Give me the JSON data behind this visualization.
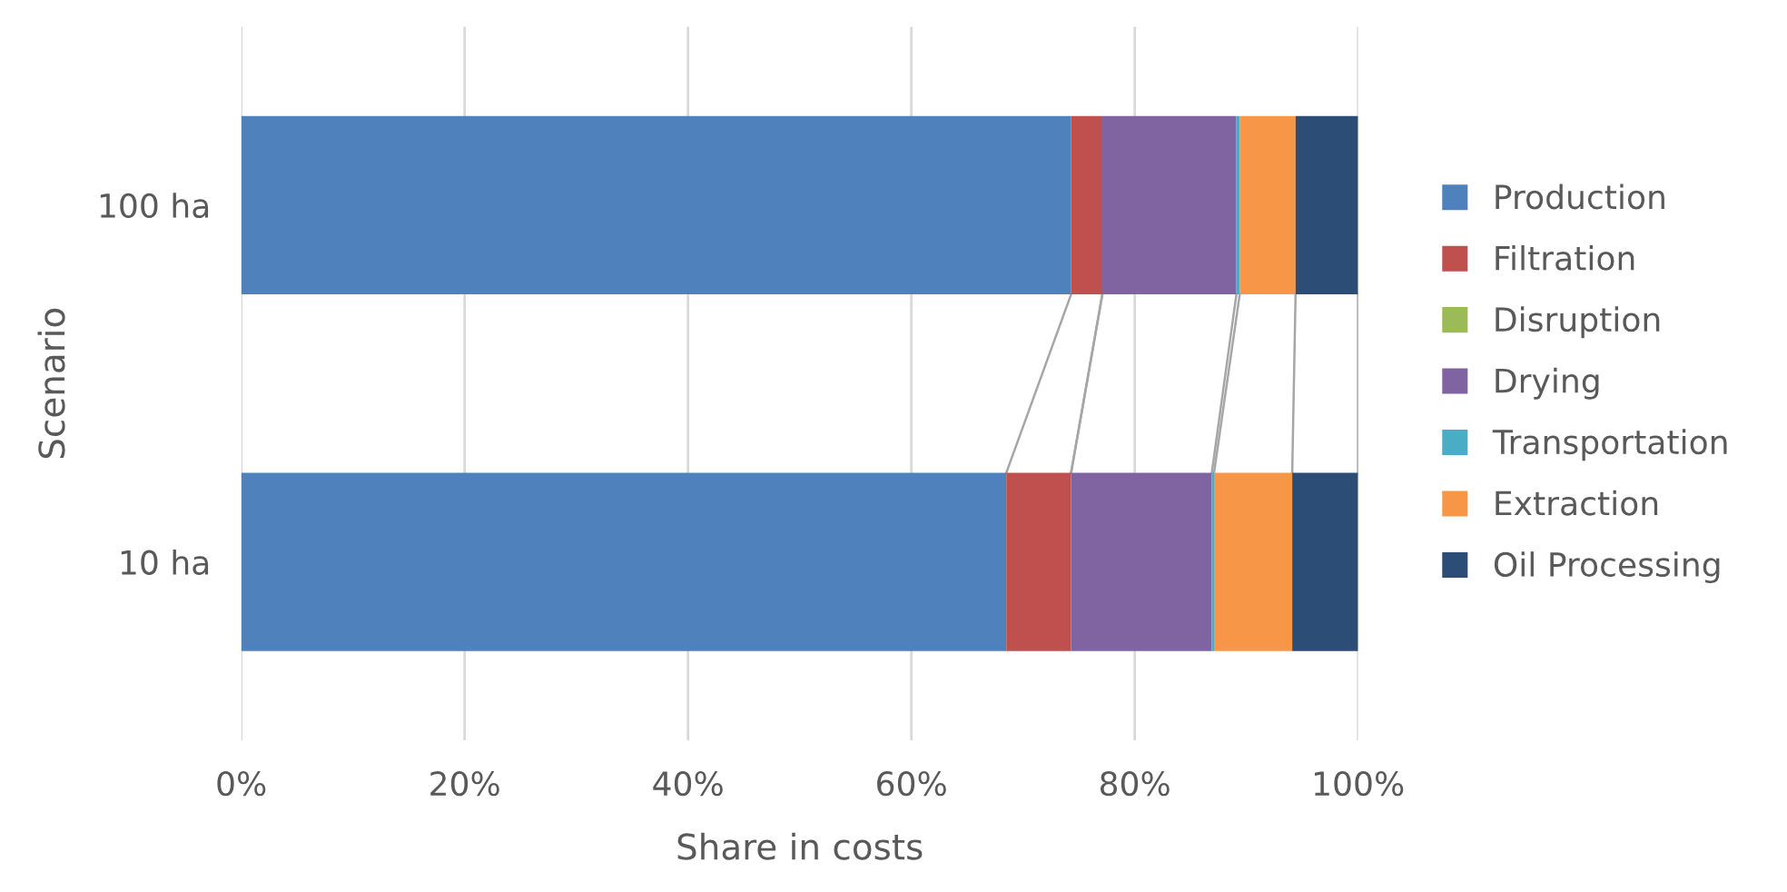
{
  "chart_data": {
    "type": "bar",
    "orientation": "horizontal",
    "stacked": true,
    "xlabel": "Share in costs",
    "ylabel": "Scenario",
    "categories": [
      "100 ha",
      "10 ha"
    ],
    "series": [
      {
        "name": "Production",
        "color": "#4f81bd",
        "values": [
          74.3,
          68.5
        ]
      },
      {
        "name": "Filtration",
        "color": "#c0504d",
        "values": [
          2.8,
          5.8
        ]
      },
      {
        "name": "Disruption",
        "color": "#9bbb59",
        "values": [
          0,
          0
        ]
      },
      {
        "name": "Drying",
        "color": "#8064a2",
        "values": [
          12.0,
          12.6
        ]
      },
      {
        "name": "Transportation",
        "color": "#4bacc6",
        "values": [
          0.3,
          0.2
        ]
      },
      {
        "name": "Extraction",
        "color": "#f79646",
        "values": [
          5.0,
          7.0
        ]
      },
      {
        "name": "Oil Processing",
        "color": "#2c4d75",
        "values": [
          5.6,
          5.9
        ]
      }
    ],
    "xlim": [
      0,
      100
    ],
    "xticks": [
      {
        "value": 0,
        "label": "0%"
      },
      {
        "value": 20,
        "label": "20%"
      },
      {
        "value": 40,
        "label": "40%"
      },
      {
        "value": 60,
        "label": "60%"
      },
      {
        "value": 80,
        "label": "80%"
      },
      {
        "value": 100,
        "label": "100%"
      }
    ],
    "grid": "x",
    "legend": "right"
  }
}
